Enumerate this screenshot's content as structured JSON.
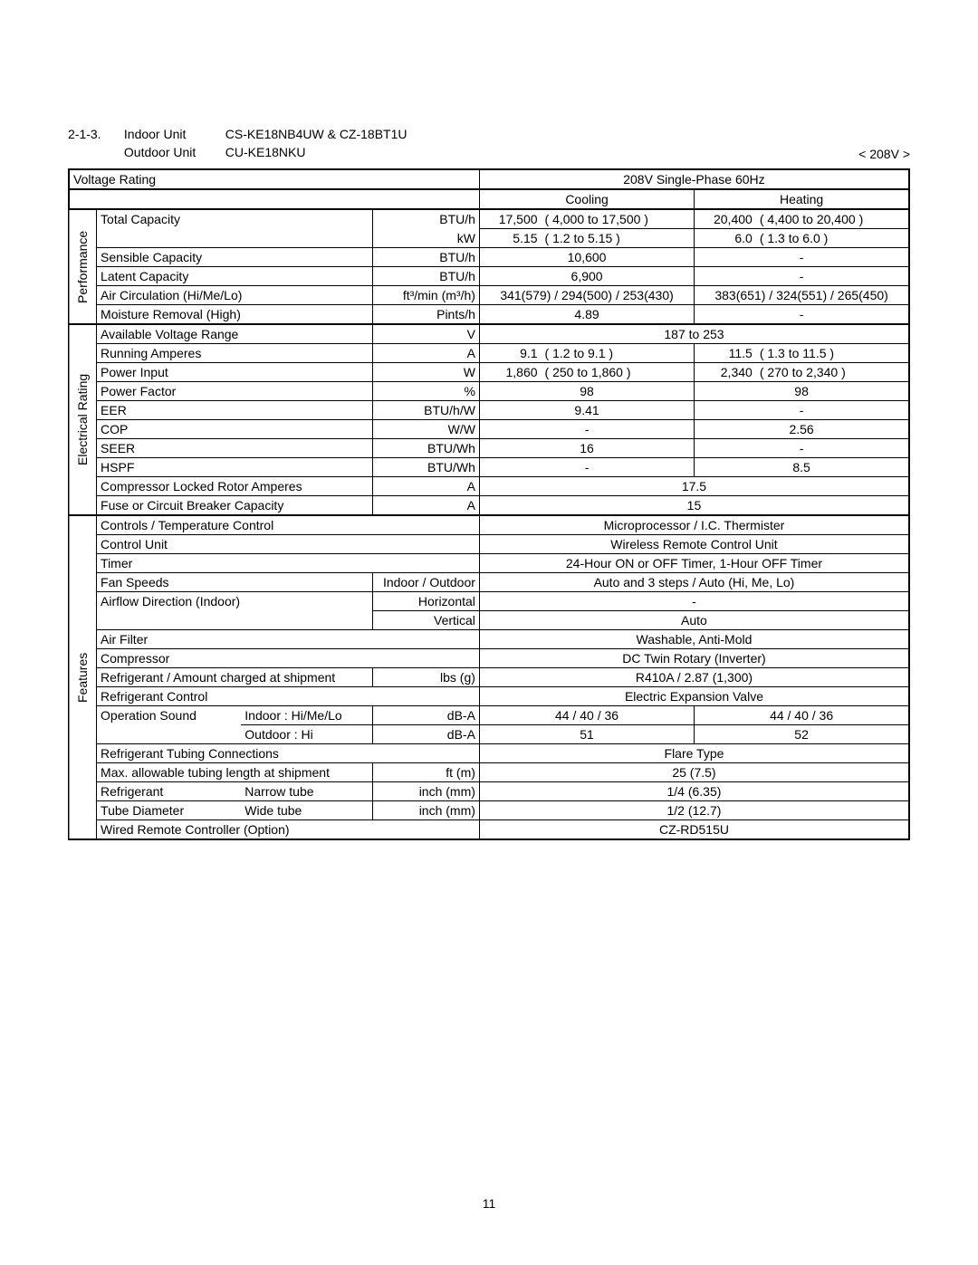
{
  "header": {
    "section": "2-1-3.",
    "indoor_label": "Indoor Unit",
    "indoor_model": "CS-KE18NB4UW & CZ-18BT1U",
    "outdoor_label": "Outdoor Unit",
    "outdoor_model": "CU-KE18NKU",
    "voltage_tag": "< 208V >"
  },
  "top": {
    "voltage_rating_label": "Voltage Rating",
    "voltage_rating_value": "208V Single-Phase 60Hz",
    "cooling": "Cooling",
    "heating": "Heating"
  },
  "perf": {
    "cat": "Performance",
    "total_capacity": "Total Capacity",
    "btu_h": "BTU/h",
    "kw": "kW",
    "tc_btu_c_v": "17,500",
    "tc_btu_c_r": "( 4,000 to 17,500 )",
    "tc_btu_h_v": "20,400",
    "tc_btu_h_r": "( 4,400 to 20,400 )",
    "tc_kw_c_v": "5.15",
    "tc_kw_c_r": "( 1.2 to 5.15 )",
    "tc_kw_h_v": "6.0",
    "tc_kw_h_r": "( 1.3 to 6.0 )",
    "sensible": "Sensible Capacity",
    "sensible_c": "10,600",
    "sensible_h": "-",
    "latent": "Latent Capacity",
    "latent_c": "6,900",
    "latent_h": "-",
    "aircirc": "Air Circulation  (Hi/Me/Lo)",
    "aircirc_unit": "ft³/min (m³/h)",
    "aircirc_c": "341(579) / 294(500) / 253(430)",
    "aircirc_h": "383(651) / 324(551) / 265(450)",
    "moisture": "Moisture Removal (High)",
    "moisture_unit": "Pints/h",
    "moisture_c": "4.89",
    "moisture_h": "-"
  },
  "elec": {
    "cat": "Electrical Rating",
    "avr": "Available Voltage Range",
    "avr_unit": "V",
    "avr_val": "187 to 253",
    "ramp": "Running Amperes",
    "ramp_unit": "A",
    "ramp_c_v": "9.1",
    "ramp_c_r": "( 1.2 to 9.1 )",
    "ramp_h_v": "11.5",
    "ramp_h_r": "( 1.3 to 11.5 )",
    "pin": "Power Input",
    "pin_unit": "W",
    "pin_c_v": "1,860",
    "pin_c_r": "( 250 to 1,860 )",
    "pin_h_v": "2,340",
    "pin_h_r": "( 270 to 2,340 )",
    "pf": "Power Factor",
    "pf_unit": "%",
    "pf_c": "98",
    "pf_h": "98",
    "eer": "EER",
    "eer_unit": "BTU/h/W",
    "eer_c": "9.41",
    "eer_h": "-",
    "cop": "COP",
    "cop_unit": "W/W",
    "cop_c": "-",
    "cop_h": "2.56",
    "seer": "SEER",
    "seer_unit": "BTU/Wh",
    "seer_c": "16",
    "seer_h": "-",
    "hspf": "HSPF",
    "hspf_unit": "BTU/Wh",
    "hspf_c": "-",
    "hspf_h": "8.5",
    "clra": "Compressor Locked Rotor Amperes",
    "clra_unit": "A",
    "clra_val": "17.5",
    "fuse": "Fuse or Circuit Breaker Capacity",
    "fuse_unit": "A",
    "fuse_val": "15"
  },
  "feat": {
    "cat": "Features",
    "ctrl": "Controls / Temperature Control",
    "ctrl_val": "Microprocessor / I.C. Thermister",
    "cunit": "Control Unit",
    "cunit_val": "Wireless Remote Control Unit",
    "timer": "Timer",
    "timer_val": "24-Hour ON or OFF Timer, 1-Hour OFF Timer",
    "fans": "Fan Speeds",
    "fans_unit": "Indoor / Outdoor",
    "fans_val": "Auto and 3 steps / Auto (Hi, Me, Lo)",
    "afd": "Airflow Direction (Indoor)",
    "afd_h": "Horizontal",
    "afd_h_val": "-",
    "afd_v": "Vertical",
    "afd_v_val": "Auto",
    "filter": "Air Filter",
    "filter_val": "Washable, Anti-Mold",
    "comp": "Compressor",
    "comp_val": "DC Twin Rotary (Inverter)",
    "refr": "Refrigerant / Amount charged at shipment",
    "refr_unit": "lbs (g)",
    "refr_val": "R410A / 2.87 (1,300)",
    "rctrl": "Refrigerant Control",
    "rctrl_val": "Electric Expansion Valve",
    "ops": "Operation Sound",
    "ops_in": "Indoor : Hi/Me/Lo",
    "ops_in_unit": "dB-A",
    "ops_in_c": "44 / 40 / 36",
    "ops_in_h": "44 / 40 / 36",
    "ops_out": "Outdoor : Hi",
    "ops_out_unit": "dB-A",
    "ops_out_c": "51",
    "ops_out_h": "52",
    "tubing": "Refrigerant Tubing Connections",
    "tubing_val": "Flare Type",
    "maxlen": "Max. allowable tubing length at shipment",
    "maxlen_unit": "ft (m)",
    "maxlen_val": "25 (7.5)",
    "refrig": "Refrigerant",
    "narrow": "Narrow tube",
    "inchmm": "inch (mm)",
    "narrow_val": "1/4 (6.35)",
    "tubed": "Tube Diameter",
    "wide": "Wide tube",
    "wide_val": "1/2 (12.7)",
    "wired": "Wired Remote Controller (Option)",
    "wired_val": "CZ-RD515U"
  },
  "page": "11"
}
